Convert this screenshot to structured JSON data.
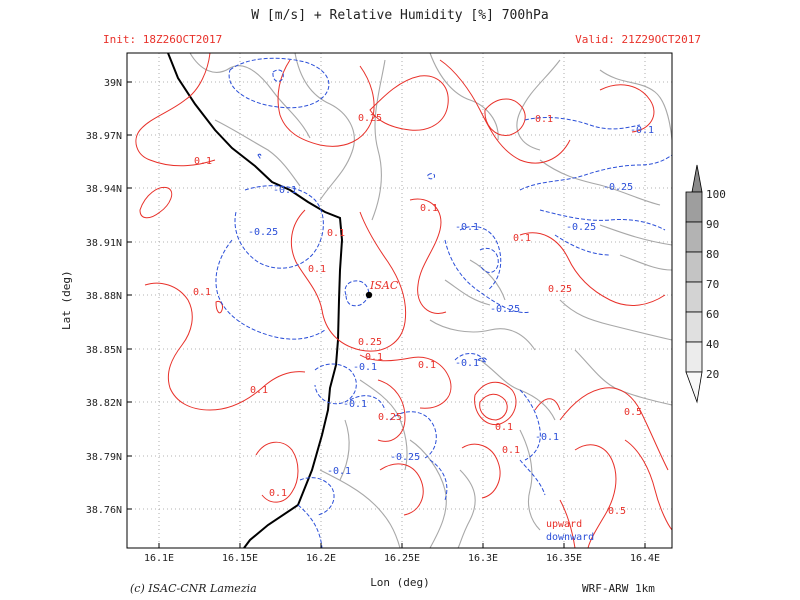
{
  "header": {
    "title": "W [m/s] + Relative Humidity [%] 700hPa",
    "init": "Init: 18Z26OCT2017",
    "valid": "Valid: 21Z29OCT2017"
  },
  "axes": {
    "xlabel": "Lon (deg)",
    "ylabel": "Lat (deg)",
    "x_ticks": [
      "16.1E",
      "16.15E",
      "16.2E",
      "16.25E",
      "16.3E",
      "16.35E",
      "16.4E"
    ],
    "y_ticks": [
      "39N",
      "38.97N",
      "38.94N",
      "38.91N",
      "38.88N",
      "38.85N",
      "38.82N",
      "38.79N",
      "38.76N"
    ]
  },
  "colorbar": {
    "labels": [
      "100",
      "90",
      "80",
      "70",
      "60",
      "40",
      "20"
    ],
    "colors": [
      "#9e9e9e",
      "#b3b3b3",
      "#c4c4c4",
      "#d3d3d3",
      "#e0e0e0",
      "#ececec",
      "#f8f8f8"
    ]
  },
  "station": {
    "label": "ISAC"
  },
  "contour_labels": {
    "upward": [
      "0.1",
      "0.25",
      "0.1",
      "0.1",
      "0.1",
      "0.1",
      "0.1",
      "0.1",
      "0.25",
      "0.1",
      "0.25",
      "0.1",
      "0.1",
      "0.25",
      "0.1",
      "0.1",
      "0.5",
      "0.5",
      "0.1"
    ],
    "downward": [
      "-0.1",
      "-0.25",
      "-0.1",
      "-0.25",
      "-0.1",
      "-0.25",
      "-0.1",
      "-0.1",
      "-0.1",
      "-0.1",
      "-0.25",
      "-0.1"
    ]
  },
  "legend": {
    "upward": "upward",
    "downward": "downward"
  },
  "footer": {
    "copyright": "(c) ISAC-CNR Lamezia",
    "model": "WRF-ARW 1km"
  },
  "colors": {
    "upward": "#e8312a",
    "downward": "#2b4fd8",
    "terrain": "#a8a8a8",
    "coast": "#000000",
    "grid": "#9a9a9a"
  }
}
